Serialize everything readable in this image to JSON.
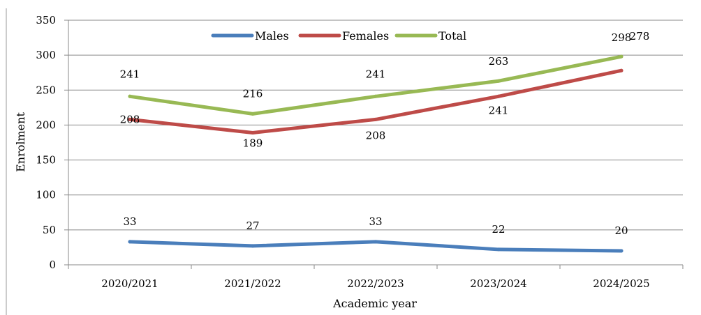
{
  "chart_data": {
    "type": "line",
    "title": "",
    "xlabel": "Academic year",
    "ylabel": "Enrolment",
    "categories": [
      "2020/2021",
      "2021/2022",
      "2022/2023",
      "2023/2024",
      "2024/2025"
    ],
    "ylim": [
      0,
      350
    ],
    "yticks": [
      0,
      50,
      100,
      150,
      200,
      250,
      300,
      350
    ],
    "grid": true,
    "legend": "top-center",
    "series": [
      {
        "name": "Males",
        "color": "#4a7ebb",
        "values": [
          33,
          27,
          33,
          22,
          20
        ]
      },
      {
        "name": "Females",
        "color": "#be4b48",
        "values": [
          208,
          189,
          208,
          241,
          278
        ]
      },
      {
        "name": "Total",
        "color": "#98b954",
        "values": [
          241,
          216,
          241,
          263,
          298
        ]
      }
    ]
  }
}
